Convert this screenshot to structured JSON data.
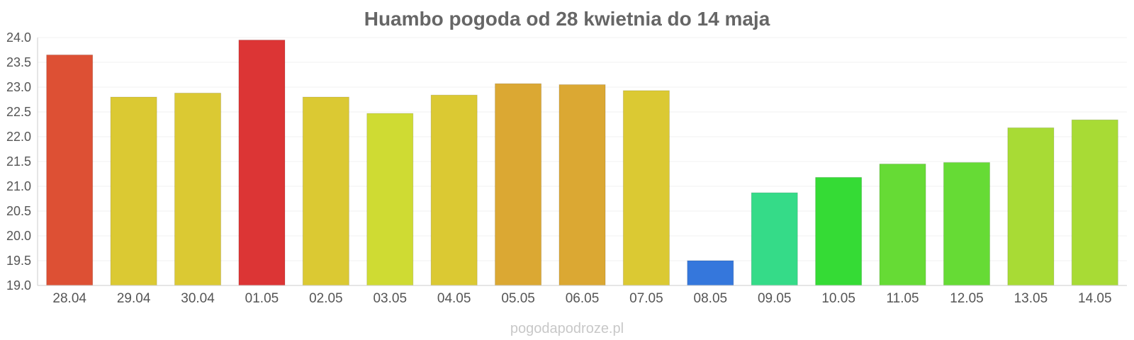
{
  "chart_data": {
    "type": "bar",
    "title": "Huambo pogoda od 28 kwietnia do 14 maja",
    "xlabel": "",
    "ylabel": "",
    "ylim": [
      19.0,
      24.0
    ],
    "yticks": [
      "19.0",
      "19.5",
      "20.0",
      "20.5",
      "21.0",
      "21.5",
      "22.0",
      "22.5",
      "23.0",
      "23.5",
      "24.0"
    ],
    "grid": true,
    "categories": [
      "28.04",
      "29.04",
      "30.04",
      "01.05",
      "02.05",
      "03.05",
      "04.05",
      "05.05",
      "06.05",
      "07.05",
      "08.05",
      "09.05",
      "10.05",
      "11.05",
      "12.05",
      "13.05",
      "14.05"
    ],
    "values": [
      23.65,
      22.8,
      22.88,
      23.95,
      22.8,
      22.47,
      22.84,
      23.07,
      23.05,
      22.93,
      19.5,
      20.87,
      21.18,
      21.45,
      21.48,
      22.18,
      22.34
    ],
    "colors": [
      "#dd5034",
      "#dbc933",
      "#dbc933",
      "#dc3535",
      "#dbc933",
      "#cfdb33",
      "#dbc933",
      "#dba833",
      "#dba833",
      "#dbc933",
      "#3577dc",
      "#35db88",
      "#35db35",
      "#66db35",
      "#66db35",
      "#a8db35",
      "#a8db35"
    ]
  },
  "watermark": "pogodapodroze.pl"
}
